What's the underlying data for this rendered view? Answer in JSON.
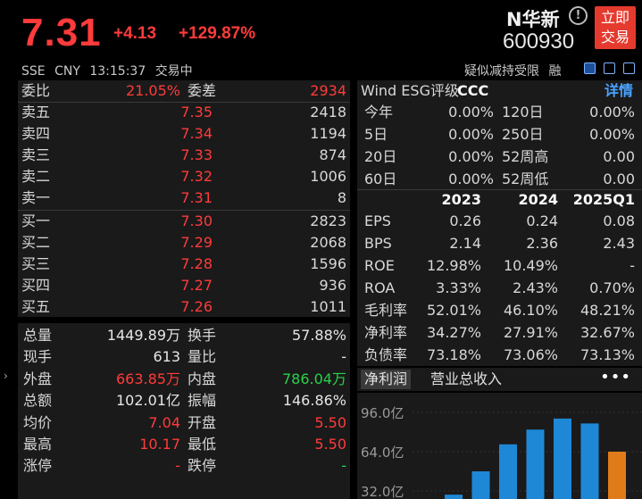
{
  "header": {
    "price": "7.31",
    "change": "+4.13",
    "change_pct": "+129.87%",
    "name": "N华新",
    "code": "600930",
    "trade_button": [
      "立即",
      "交易"
    ],
    "market": "SSE",
    "currency": "CNY",
    "time": "13:15:37",
    "status": "交易中",
    "tag": "疑似减持受限",
    "tag2": "融"
  },
  "order_book": {
    "weibi_label": "委比",
    "weibi_value": "21.05%",
    "weicha_label": "委差",
    "weicha_value": "2934",
    "asks": [
      {
        "label": "卖五",
        "price": "7.35",
        "volume": "2418"
      },
      {
        "label": "卖四",
        "price": "7.34",
        "volume": "1194"
      },
      {
        "label": "卖三",
        "price": "7.33",
        "volume": "874"
      },
      {
        "label": "卖二",
        "price": "7.32",
        "volume": "1006"
      },
      {
        "label": "卖一",
        "price": "7.31",
        "volume": "8"
      }
    ],
    "bids": [
      {
        "label": "买一",
        "price": "7.30",
        "volume": "2823"
      },
      {
        "label": "买二",
        "price": "7.29",
        "volume": "2068"
      },
      {
        "label": "买三",
        "price": "7.28",
        "volume": "1596"
      },
      {
        "label": "买四",
        "price": "7.27",
        "volume": "936"
      },
      {
        "label": "买五",
        "price": "7.26",
        "volume": "1011"
      }
    ]
  },
  "stats": [
    {
      "l1": "总量",
      "v1": "1449.89万",
      "c1": "white",
      "l2": "换手",
      "v2": "57.88%",
      "c2": "white"
    },
    {
      "l1": "现手",
      "v1": "613",
      "c1": "white",
      "l2": "量比",
      "v2": "-",
      "c2": "white"
    },
    {
      "l1": "外盘",
      "v1": "663.85万",
      "c1": "red",
      "l2": "内盘",
      "v2": "786.04万",
      "c2": "green"
    },
    {
      "l1": "总额",
      "v1": "102.01亿",
      "c1": "white",
      "l2": "振幅",
      "v2": "146.86%",
      "c2": "white"
    },
    {
      "l1": "均价",
      "v1": "7.04",
      "c1": "red",
      "l2": "开盘",
      "v2": "5.50",
      "c2": "red"
    },
    {
      "l1": "最高",
      "v1": "10.17",
      "c1": "red",
      "l2": "最低",
      "v2": "5.50",
      "c2": "red"
    },
    {
      "l1": "涨停",
      "v1": "-",
      "c1": "red",
      "l2": "跌停",
      "v2": "-",
      "c2": "green"
    }
  ],
  "esg": {
    "title": "Wind ESG评级",
    "rating": "CCC",
    "detail": "详情"
  },
  "returns": [
    {
      "l1": "今年",
      "v1": "0.00%",
      "l2": "120日",
      "v2": "0.00%"
    },
    {
      "l1": "5日",
      "v1": "0.00%",
      "l2": "250日",
      "v2": "0.00%"
    },
    {
      "l1": "20日",
      "v1": "0.00%",
      "l2": "52周高",
      "v2": "0.00"
    },
    {
      "l1": "60日",
      "v1": "0.00%",
      "l2": "52周低",
      "v2": "0.00"
    }
  ],
  "financials": {
    "columns": [
      "2023",
      "2024",
      "2025Q1"
    ],
    "rows": [
      {
        "label": "EPS",
        "values": [
          "0.26",
          "0.24",
          "0.08"
        ]
      },
      {
        "label": "BPS",
        "values": [
          "2.14",
          "2.36",
          "2.43"
        ]
      },
      {
        "label": "ROE",
        "values": [
          "12.98%",
          "10.49%",
          "-"
        ]
      },
      {
        "label": "ROA",
        "values": [
          "3.33%",
          "2.43%",
          "0.70%"
        ]
      },
      {
        "label": "毛利率",
        "values": [
          "52.01%",
          "46.10%",
          "48.21%"
        ]
      },
      {
        "label": "净利率",
        "values": [
          "34.27%",
          "27.91%",
          "32.67%"
        ]
      },
      {
        "label": "负债率",
        "values": [
          "73.18%",
          "73.06%",
          "73.13%"
        ]
      }
    ]
  },
  "tabs": [
    "净利润",
    "营业总收入"
  ],
  "more": "•••",
  "chart_data": {
    "type": "bar",
    "y_ticks": [
      "96.0亿",
      "64.0亿",
      "32.0亿"
    ],
    "tick_values": [
      96,
      64,
      32
    ],
    "values": [
      29,
      48,
      70,
      82,
      91,
      87,
      64
    ],
    "colors": [
      "#1e88d6",
      "#1e88d6",
      "#1e88d6",
      "#1e88d6",
      "#1e88d6",
      "#1e88d6",
      "#e07b1a"
    ]
  }
}
